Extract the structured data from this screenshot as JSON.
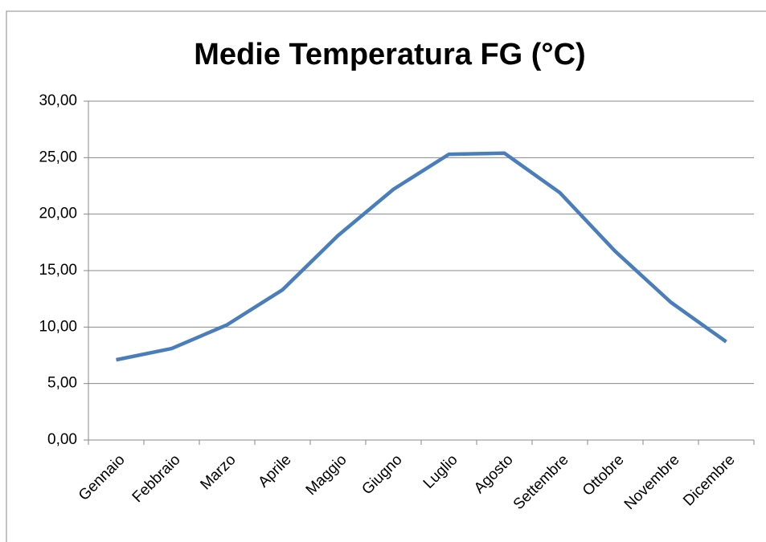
{
  "chart_data": {
    "type": "line",
    "title": "Medie Temperatura FG (°C)",
    "categories": [
      "Gennaio",
      "Febbraio",
      "Marzo",
      "Aprile",
      "Maggio",
      "Giugno",
      "Luglio",
      "Agosto",
      "Settembre",
      "Ottobre",
      "Novembre",
      "Dicembre"
    ],
    "values": [
      7.1,
      8.1,
      10.2,
      13.3,
      18.1,
      22.2,
      25.3,
      25.4,
      21.9,
      16.7,
      12.2,
      8.7
    ],
    "color": "#4a7ebb",
    "ylim": [
      0,
      30
    ],
    "yticks": [
      {
        "value": 0,
        "label": "0,00"
      },
      {
        "value": 5,
        "label": "5,00"
      },
      {
        "value": 10,
        "label": "10,00"
      },
      {
        "value": 15,
        "label": "15,00"
      },
      {
        "value": 20,
        "label": "20,00"
      },
      {
        "value": 25,
        "label": "25,00"
      },
      {
        "value": 30,
        "label": "30,00"
      }
    ],
    "grid": true
  }
}
